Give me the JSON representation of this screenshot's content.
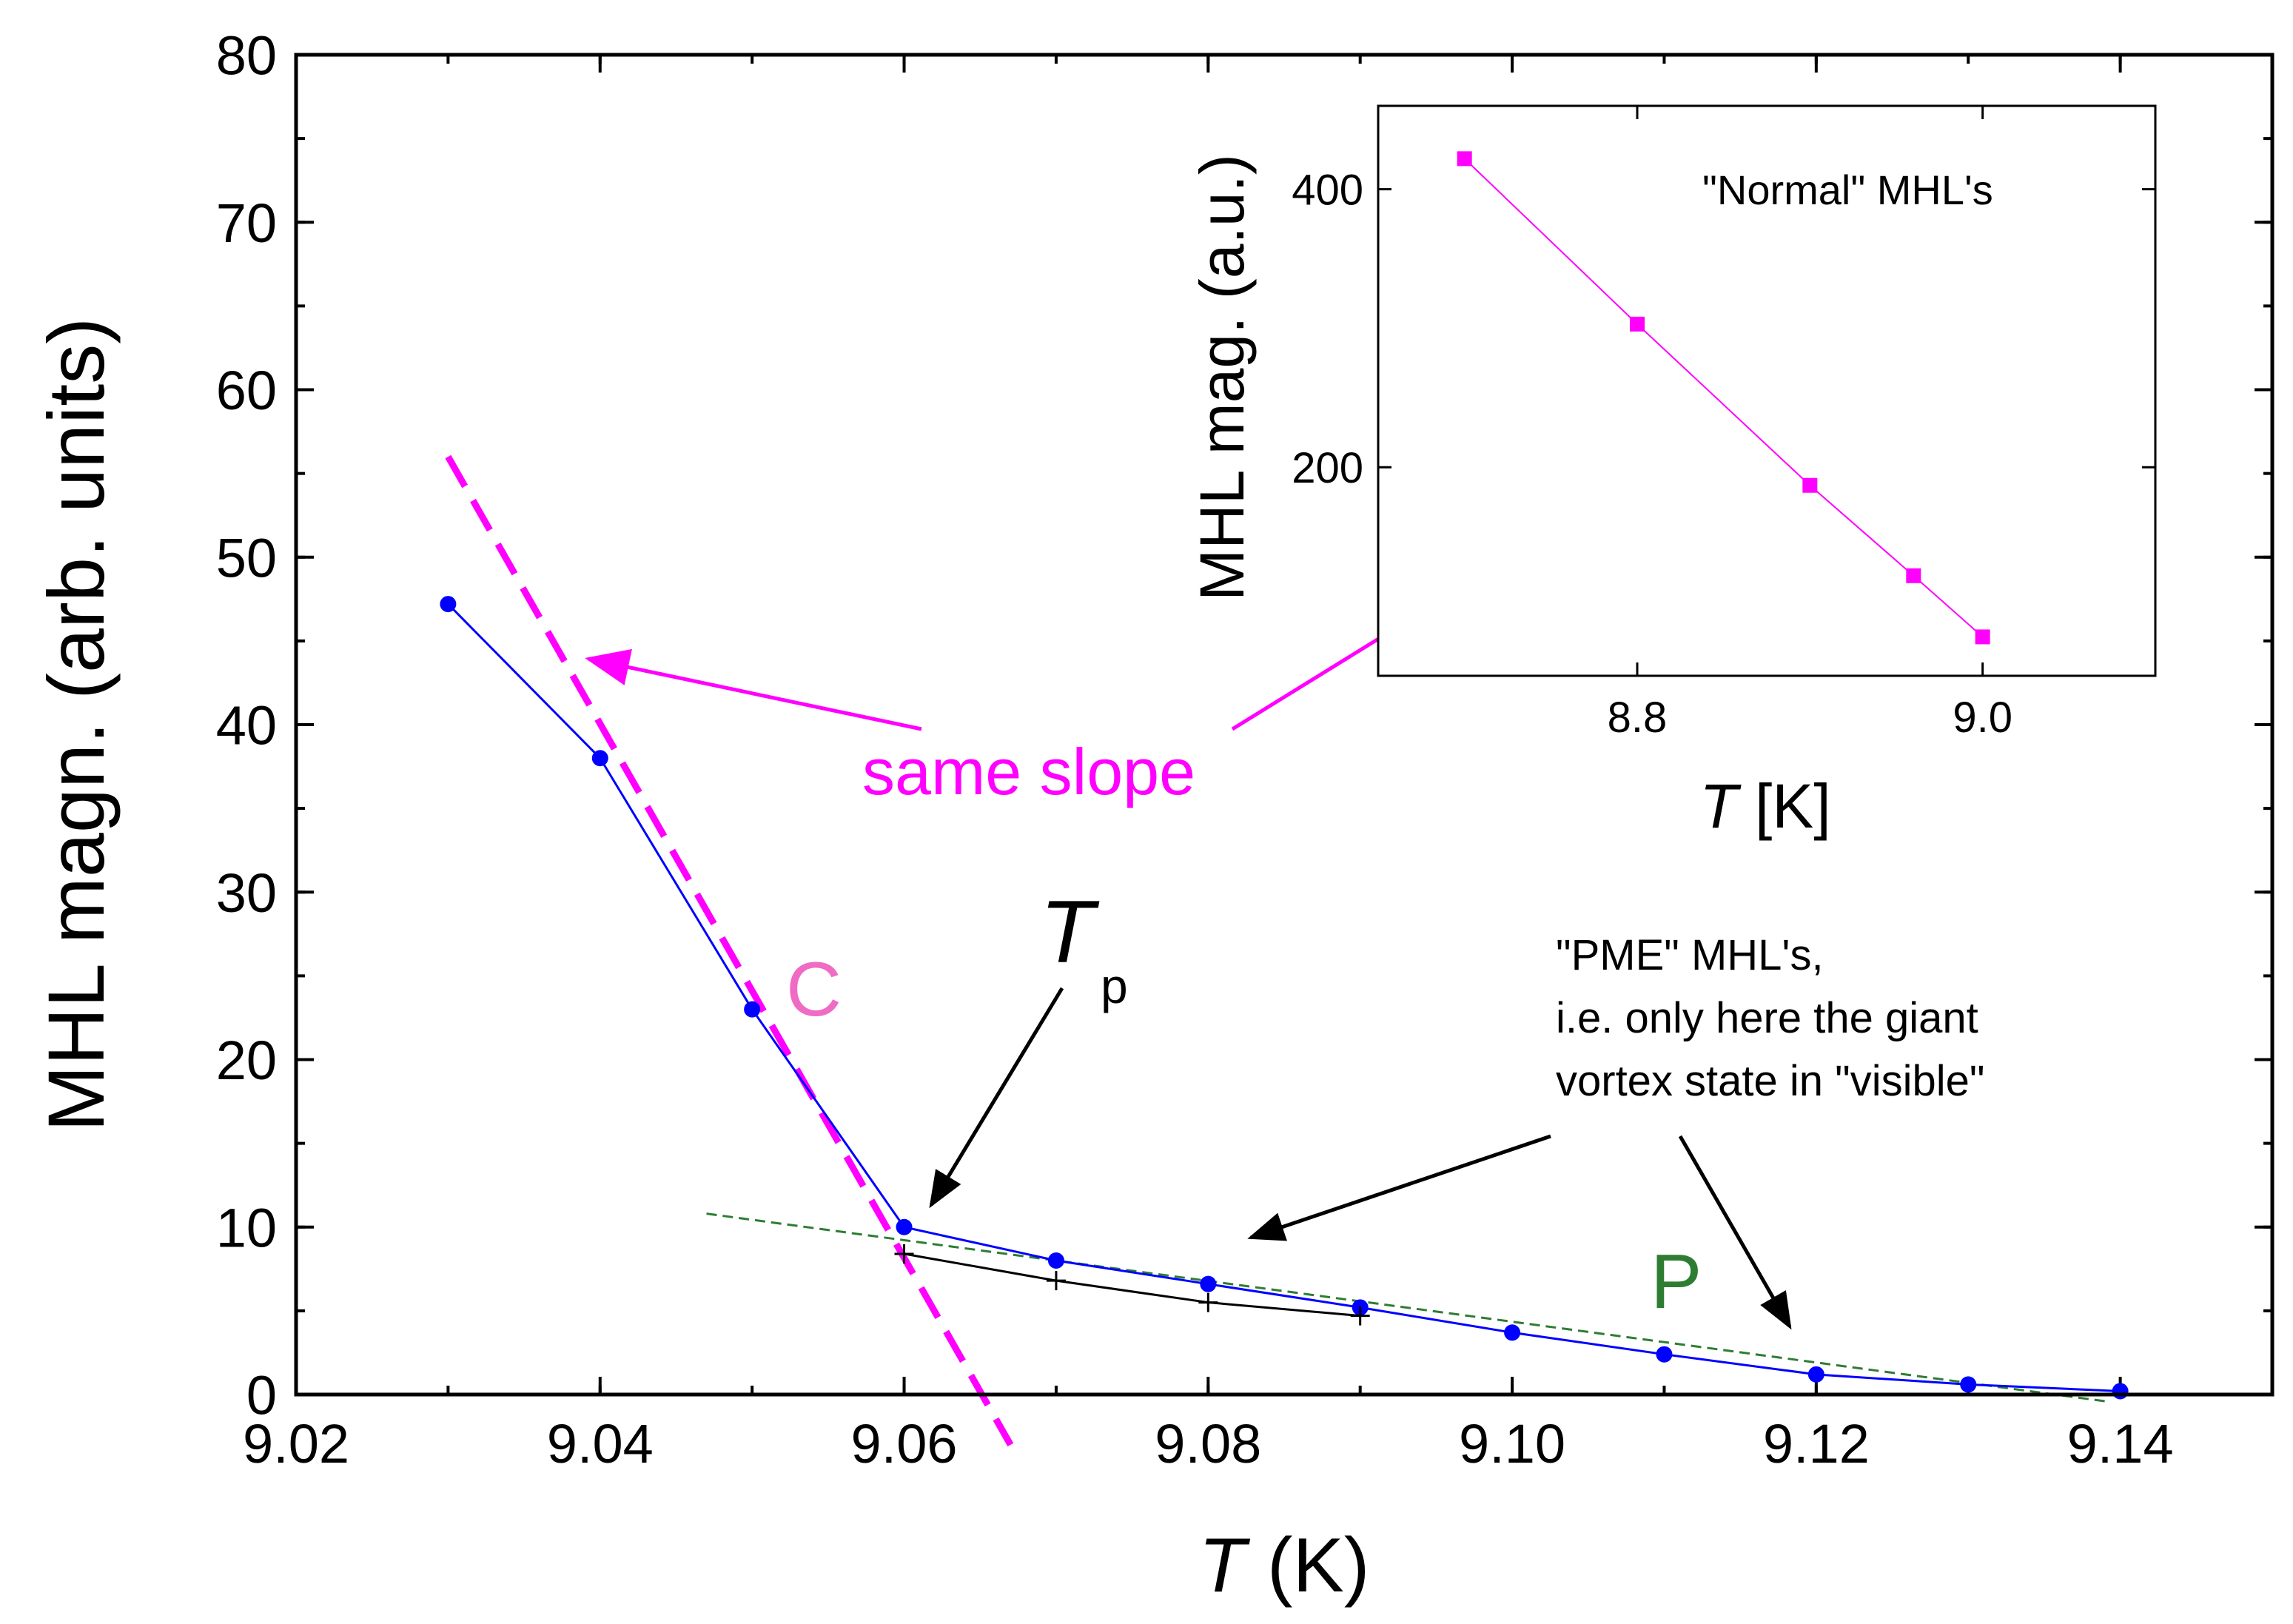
{
  "chart_data": [
    {
      "type": "line",
      "xlabel_italic": "T",
      "xlabel_rest": " (K)",
      "ylabel": "MHL magn. (arb. units)",
      "xlim": [
        9.02,
        9.15
      ],
      "ylim": [
        0,
        80
      ],
      "xticks": [
        9.02,
        9.04,
        9.06,
        9.08,
        9.1,
        9.12,
        9.14
      ],
      "xtick_labels": [
        "9.02",
        "9.04",
        "9.06",
        "9.08",
        "9.10",
        "9.12",
        "9.14"
      ],
      "yticks": [
        0,
        10,
        20,
        30,
        40,
        50,
        60,
        70,
        80
      ],
      "ytick_labels": [
        "0",
        "10",
        "20",
        "30",
        "40",
        "50",
        "60",
        "70",
        "80"
      ],
      "series": [
        {
          "marker": "circle",
          "color": "#0000ff",
          "x": [
            9.03,
            9.04,
            9.05,
            9.06,
            9.07,
            9.08,
            9.09,
            9.1,
            9.11,
            9.12,
            9.13,
            9.14
          ],
          "y": [
            47.2,
            38.0,
            23.0,
            10.0,
            8.0,
            6.6,
            5.2,
            3.7,
            2.4,
            1.2,
            0.6,
            0.2
          ]
        },
        {
          "marker": "plus",
          "color": "#000000",
          "x": [
            9.06,
            9.07,
            9.08,
            9.09
          ],
          "y": [
            8.4,
            6.8,
            5.5,
            4.7
          ]
        }
      ],
      "fit_lines": [
        {
          "name": "C",
          "color": "#ff00ff",
          "style": "dashed",
          "x": [
            9.03,
            9.067
          ],
          "y": [
            56.0,
            -3.0
          ]
        },
        {
          "name": "P",
          "color": "#2e7d32",
          "style": "dashed",
          "x": [
            9.047,
            9.139
          ],
          "y": [
            10.8,
            -0.4
          ]
        }
      ],
      "annotations": {
        "same_slope": "same slope",
        "tp_main": "T",
        "tp_sub": "p",
        "c_label": "C",
        "p_label": "P",
        "pme_lines": [
          "\"PME\" MHL's,",
          "i.e. only here the giant",
          "vortex state in \"visible\""
        ]
      },
      "colors": {
        "magenta": "#ff00ff",
        "pink": "#f06bc4",
        "green": "#2e7d32",
        "blue": "#0000ff"
      }
    },
    {
      "type": "line",
      "xlabel_italic": "T",
      "xlabel_rest": " [K]",
      "ylabel": "MHL mag. (a.u.)",
      "xlim": [
        8.65,
        9.1
      ],
      "ylim": [
        50,
        460
      ],
      "xticks": [
        8.8,
        9.0
      ],
      "xtick_labels": [
        "8.8",
        "9.0"
      ],
      "yticks": [
        200,
        400
      ],
      "ytick_labels": [
        "200",
        "400"
      ],
      "legend_text": "\"Normal\" MHL's",
      "series": [
        {
          "marker": "square",
          "color": "#ff00ff",
          "x": [
            8.7,
            8.8,
            8.9,
            8.96,
            9.0
          ],
          "y": [
            422,
            303,
            187,
            122,
            78
          ]
        }
      ]
    }
  ]
}
